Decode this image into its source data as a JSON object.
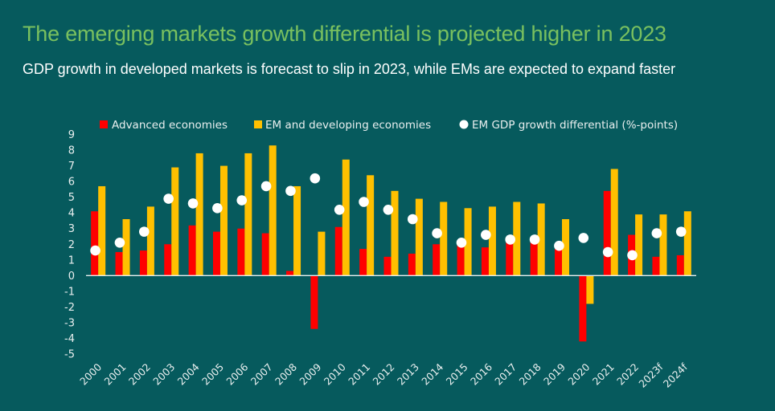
{
  "header": {
    "title": "The emerging markets growth differential is projected higher in 2023",
    "subtitle": "GDP growth in developed markets is forecast to slip in 2023, while EMs are expected to expand faster"
  },
  "colors": {
    "background": "#065a5d",
    "advanced": "#ff0000",
    "em": "#ffc000",
    "differential": "#ffffff",
    "title": "#79c05f",
    "axis": "#e9efef"
  },
  "chart_data": {
    "type": "bar",
    "title": "The emerging markets growth differential is projected higher in 2023",
    "subtitle": "GDP growth in developed markets is forecast to slip in 2023, while EMs are expected to expand faster",
    "xlabel": "",
    "ylabel": "",
    "ylim": [
      -5,
      9
    ],
    "yticks": [
      9,
      8,
      7,
      6,
      5,
      4,
      3,
      2,
      1,
      0,
      -1,
      -2,
      -3,
      -4,
      -5
    ],
    "grid": false,
    "legend_position": "top",
    "categories": [
      "2000",
      "2001",
      "2002",
      "2003",
      "2004",
      "2005",
      "2006",
      "2007",
      "2008",
      "2009",
      "2010",
      "2011",
      "2012",
      "2013",
      "2014",
      "2015",
      "2016",
      "2017",
      "2018",
      "2019",
      "2020",
      "2021",
      "2022",
      "2023f",
      "2024f"
    ],
    "series": [
      {
        "name": "Advanced economies",
        "kind": "bar",
        "values": [
          4.1,
          1.5,
          1.6,
          2.0,
          3.2,
          2.8,
          3.0,
          2.7,
          0.3,
          -3.4,
          3.1,
          1.7,
          1.2,
          1.4,
          2.0,
          2.2,
          1.8,
          2.4,
          2.2,
          1.7,
          -4.2,
          5.4,
          2.6,
          1.2,
          1.3
        ]
      },
      {
        "name": "EM and developing economies",
        "kind": "bar",
        "values": [
          5.7,
          3.6,
          4.4,
          6.9,
          7.8,
          7.0,
          7.8,
          8.3,
          5.7,
          2.8,
          7.4,
          6.4,
          5.4,
          4.9,
          4.7,
          4.3,
          4.4,
          4.7,
          4.6,
          3.6,
          -1.8,
          6.8,
          3.9,
          3.9,
          4.1
        ]
      },
      {
        "name": "EM GDP growth differential (%-points)",
        "kind": "scatter",
        "values": [
          1.6,
          2.1,
          2.8,
          4.9,
          4.6,
          4.3,
          4.8,
          5.7,
          5.4,
          6.2,
          4.2,
          4.7,
          4.2,
          3.6,
          2.7,
          2.1,
          2.6,
          2.3,
          2.3,
          1.9,
          2.4,
          1.5,
          1.3,
          2.7,
          2.8
        ]
      }
    ]
  }
}
